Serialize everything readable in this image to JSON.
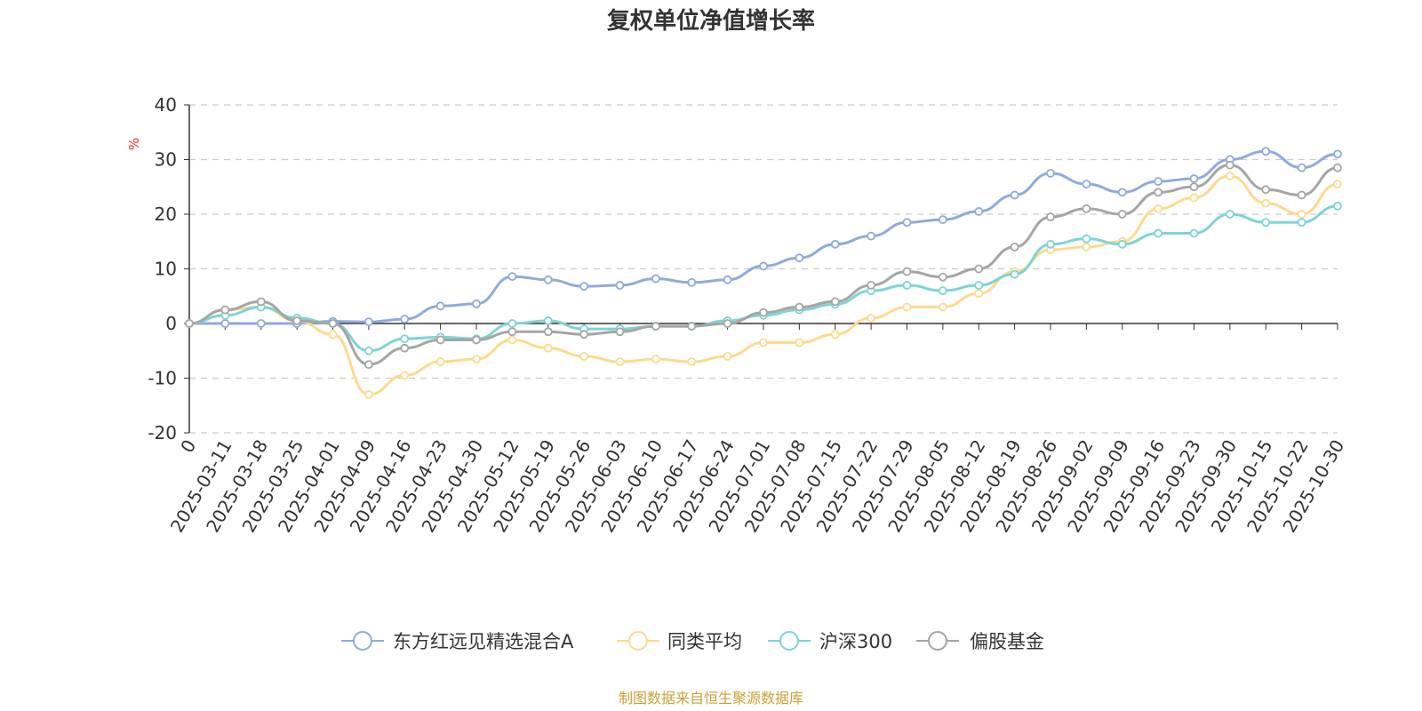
{
  "chart_data": {
    "type": "line",
    "title": "复权单位净值增长率",
    "unit": "%",
    "ylim": [
      -20,
      40
    ],
    "yticks": [
      40,
      30,
      20,
      10,
      0,
      -10,
      -20
    ],
    "grid": true,
    "legend_position": "bottom",
    "x_labels": [
      "0",
      "2025-03-11",
      "2025-03-18",
      "2025-03-25",
      "2025-04-01",
      "2025-04-09",
      "2025-04-16",
      "2025-04-23",
      "2025-04-30",
      "2025-05-12",
      "2025-05-19",
      "2025-05-26",
      "2025-06-03",
      "2025-06-10",
      "2025-06-17",
      "2025-06-24",
      "2025-07-01",
      "2025-07-08",
      "2025-07-15",
      "2025-07-22",
      "2025-07-29",
      "2025-08-05",
      "2025-08-12",
      "2025-08-19",
      "2025-08-26",
      "2025-09-02",
      "2025-09-09",
      "2025-09-16",
      "2025-09-23",
      "2025-09-30",
      "2025-10-15",
      "2025-10-22",
      "2025-10-30"
    ],
    "series": [
      {
        "name": "东方红远见精选混合A",
        "color": "#8faadc",
        "values": [
          0,
          0,
          0,
          0,
          0.4,
          0.3,
          0.8,
          3.2,
          3.6,
          8.6,
          8.0,
          6.8,
          7.0,
          8.2,
          7.5,
          8.0,
          10.5,
          12.0,
          14.5,
          16.0,
          18.5,
          19.0,
          20.5,
          23.5,
          27.5,
          25.5,
          24.0,
          26.0,
          26.5,
          30.0,
          31.5,
          28.5,
          31.0
        ]
      },
      {
        "name": "同类平均",
        "color": "#ffd98e",
        "values": [
          0,
          2.5,
          3.0,
          0.5,
          -2.0,
          -13.0,
          -9.5,
          -7.0,
          -6.5,
          -3.0,
          -4.5,
          -6.0,
          -7.0,
          -6.5,
          -7.0,
          -6.0,
          -3.5,
          -3.5,
          -2.0,
          1.0,
          3.0,
          3.0,
          5.5,
          9.5,
          13.5,
          14.0,
          15.0,
          21.0,
          23.0,
          27.0,
          22.0,
          20.0,
          25.5
        ]
      },
      {
        "name": "沪深300",
        "color": "#7ed3d6",
        "values": [
          0,
          1.5,
          3.0,
          1.0,
          0.0,
          -5.0,
          -2.8,
          -2.5,
          -2.8,
          0.0,
          0.5,
          -1.0,
          -1.0,
          -0.5,
          -0.5,
          0.5,
          1.5,
          2.5,
          3.5,
          6.0,
          7.0,
          6.0,
          7.0,
          9.0,
          14.5,
          15.5,
          14.5,
          16.5,
          16.5,
          20.0,
          18.5,
          18.5,
          21.5
        ]
      },
      {
        "name": "偏股基金",
        "color": "#a5a5a5",
        "values": [
          0,
          2.5,
          4.0,
          0.5,
          0.0,
          -7.5,
          -4.5,
          -3.0,
          -3.0,
          -1.5,
          -1.5,
          -2.0,
          -1.5,
          -0.5,
          -0.5,
          0.0,
          2.0,
          3.0,
          4.0,
          7.0,
          9.5,
          8.5,
          10.0,
          14.0,
          19.5,
          21.0,
          20.0,
          24.0,
          25.0,
          29.0,
          24.5,
          23.5,
          28.5
        ]
      }
    ]
  },
  "source_note": "制图数据来自恒生聚源数据库"
}
